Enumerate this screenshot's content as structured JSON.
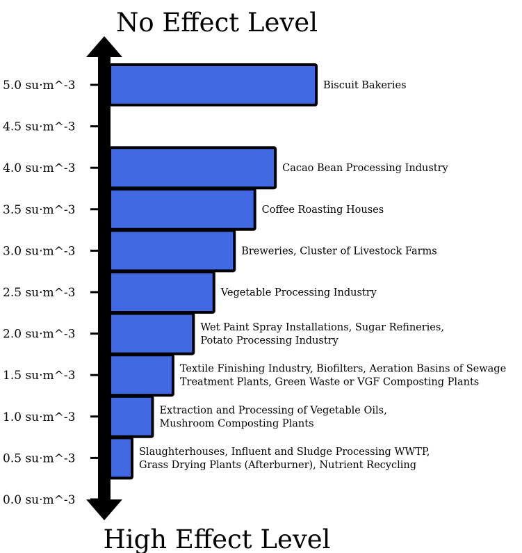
{
  "chart_data": {
    "type": "bar",
    "orientation": "horizontal",
    "title_top": "No Effect Level",
    "title_bottom": "High Effect Level",
    "y_unit": "su·m^-3",
    "ylim": [
      0,
      5.0
    ],
    "ticks": [
      {
        "value": 0.0,
        "label": "0.0 su·m^-3"
      },
      {
        "value": 0.5,
        "label": "0.5 su·m^-3"
      },
      {
        "value": 1.0,
        "label": "1.0 su·m^-3"
      },
      {
        "value": 1.5,
        "label": "1.5 su·m^-3"
      },
      {
        "value": 2.0,
        "label": "2.0 su·m^-3"
      },
      {
        "value": 2.5,
        "label": "2.5 su·m^-3"
      },
      {
        "value": 3.0,
        "label": "3.0 su·m^-3"
      },
      {
        "value": 3.5,
        "label": "3.5 su·m^-3"
      },
      {
        "value": 4.0,
        "label": "4.0 su·m^-3"
      },
      {
        "value": 4.5,
        "label": "4.5 su·m^-3"
      },
      {
        "value": 5.0,
        "label": "5.0 su·m^-3"
      }
    ],
    "bars": [
      {
        "value": 0.5,
        "label_lines": [
          "Slaughterhouses, Influent and Sludge Processing WWTP,",
          "Grass Drying Plants (Afterburner), Nutrient Recycling"
        ]
      },
      {
        "value": 1.0,
        "label_lines": [
          "Extraction and Processing of Vegetable Oils,",
          "Mushroom Composting Plants"
        ]
      },
      {
        "value": 1.5,
        "label_lines": [
          "Textile Finishing Industry, Biofilters, Aeration Basins of Sewage",
          "Treatment Plants, Green Waste or VGF Composting Plants"
        ]
      },
      {
        "value": 2.0,
        "label_lines": [
          "Wet Paint Spray Installations, Sugar Refineries,",
          "Potato Processing Industry"
        ]
      },
      {
        "value": 2.5,
        "label_lines": [
          "Vegetable Processing Industry"
        ]
      },
      {
        "value": 3.0,
        "label_lines": [
          "Breweries, Cluster of Livestock Farms"
        ]
      },
      {
        "value": 3.5,
        "label_lines": [
          "Coffee Roasting Houses"
        ]
      },
      {
        "value": 4.0,
        "label_lines": [
          "Cacao Bean Processing Industry"
        ]
      },
      {
        "value": 5.0,
        "label_lines": [
          "Biscuit Bakeries"
        ]
      }
    ],
    "colors": {
      "bar_fill": "#4169e1",
      "bar_stroke": "#000000",
      "axis": "#000000"
    }
  }
}
